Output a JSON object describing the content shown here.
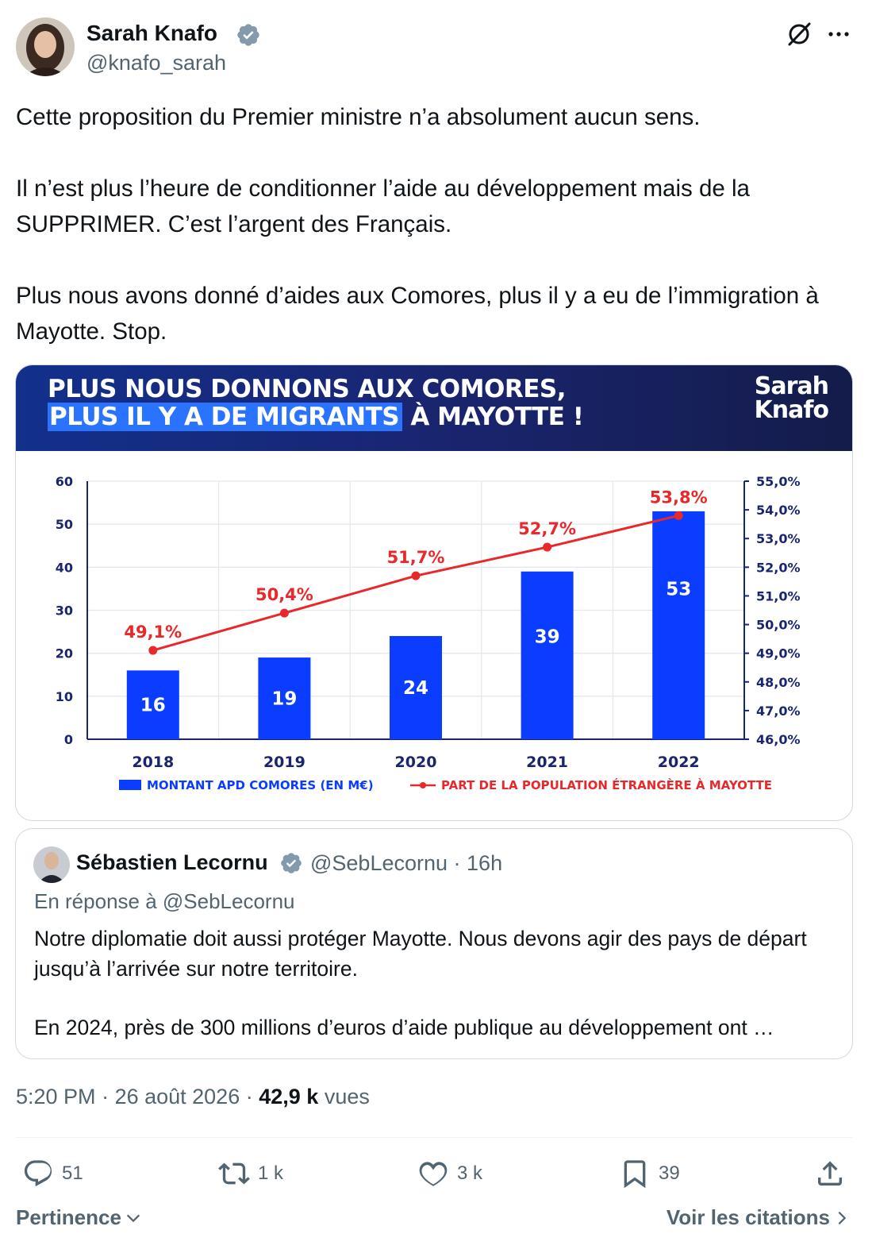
{
  "author": {
    "name": "Sarah Knafo",
    "handle": "@knafo_sarah"
  },
  "tweet": {
    "paragraphs": [
      "Cette proposition du Premier ministre n’a absolument aucun sens.",
      "Il n’est plus l’heure de conditionner l’aide au développement mais de la SUPPRIMER. C’est l’argent des Français.",
      "Plus nous avons donné d’aides aux Comores, plus il y a eu de l’immigration à Mayotte. Stop."
    ]
  },
  "media": {
    "banner_line1": "PLUS NOUS DONNONS AUX COMORES,",
    "banner_line2_highlight": "PLUS IL Y A DE MIGRANTS",
    "banner_line2_rest": " À MAYOTTE !",
    "brand_line1": "Sarah",
    "brand_line2": "Knafo",
    "brand_color": "#1a2570",
    "highlight_color": "#2a73ff"
  },
  "chart_data": {
    "type": "bar",
    "categories": [
      "2018",
      "2019",
      "2020",
      "2021",
      "2022"
    ],
    "series": [
      {
        "name": "MONTANT APD COMORES (EN M€)",
        "type": "bar",
        "axis": "left",
        "color": "#0a3dff",
        "values": [
          16,
          19,
          24,
          39,
          53
        ],
        "labels": [
          "16",
          "19",
          "24",
          "39",
          "53"
        ]
      },
      {
        "name": "PART DE LA POPULATION ÉTRANGÈRE À MAYOTTE",
        "type": "line",
        "axis": "right",
        "color": "#e8282a",
        "values": [
          49.1,
          50.4,
          51.7,
          52.7,
          53.8
        ],
        "labels": [
          "49,1%",
          "50,4%",
          "51,7%",
          "52,7%",
          "53,8%"
        ]
      }
    ],
    "y_left": {
      "range": [
        0,
        60
      ],
      "ticks": [
        "0",
        "10",
        "20",
        "30",
        "40",
        "50",
        "60"
      ]
    },
    "y_right": {
      "range": [
        46,
        55
      ],
      "ticks": [
        "46,0%",
        "47,0%",
        "48,0%",
        "49,0%",
        "50,0%",
        "51,0%",
        "52,0%",
        "53,0%",
        "54,0%",
        "55,0%"
      ]
    },
    "grid": true,
    "legend_position": "bottom"
  },
  "quote": {
    "name": "Sébastien Lecornu",
    "handle": "@SebLecornu",
    "time": "16h",
    "reply_to": "En réponse à @SebLecornu",
    "paragraphs": [
      "Notre diplomatie doit aussi protéger Mayotte. Nous devons agir des pays de départ jusqu’à l’arrivée sur notre territoire.",
      "En 2024, près de 300 millions d’euros d’aide publique au développement ont …"
    ]
  },
  "meta": {
    "time": "5:20 PM",
    "date": "26 août 2026",
    "views_count": "42,9 k",
    "views_label": "vues"
  },
  "actions": {
    "replies": "51",
    "reposts": "1 k",
    "likes": "3 k",
    "bookmarks": "39"
  },
  "footer": {
    "sort_label": "Pertinence",
    "quotes_link": "Voir les citations"
  }
}
